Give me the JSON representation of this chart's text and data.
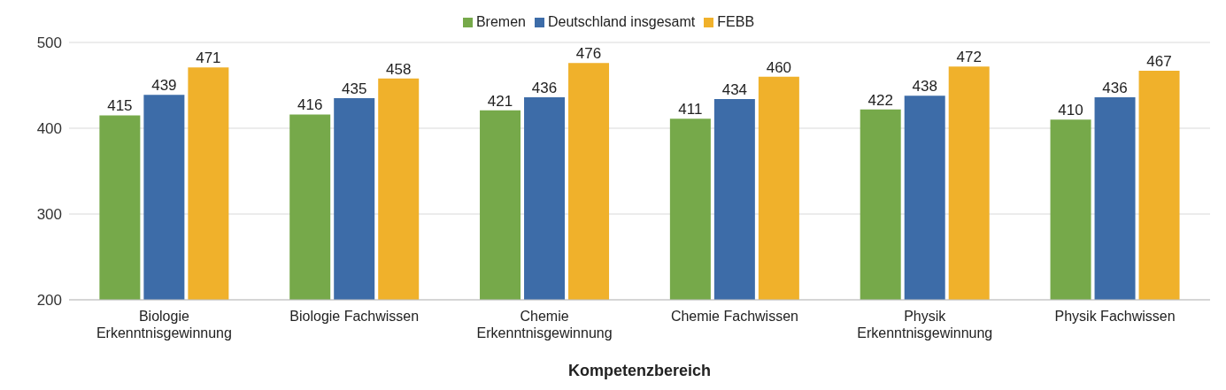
{
  "chart_data": {
    "type": "bar",
    "xlabel": "Kompetenzbereich",
    "categories": [
      "Biologie Erkenntnisgewinnung",
      "Biologie Fachwissen",
      "Chemie Erkenntnisgewinnung",
      "Chemie Fachwissen",
      "Physik Erkenntnisgewinnung",
      "Physik Fachwissen"
    ],
    "series": [
      {
        "name": "Bremen",
        "color": "#76a94a",
        "values": [
          415,
          416,
          421,
          411,
          422,
          410
        ]
      },
      {
        "name": "Deutschland insgesamt",
        "color": "#3d6ca8",
        "values": [
          439,
          435,
          436,
          434,
          438,
          436
        ]
      },
      {
        "name": "FEBB",
        "color": "#f0b12b",
        "values": [
          471,
          458,
          476,
          460,
          472,
          467
        ]
      }
    ],
    "ylim": [
      200,
      500
    ],
    "yticks": [
      200,
      300,
      400,
      500
    ],
    "grid": "y",
    "legend": "top",
    "data_labels": true
  }
}
